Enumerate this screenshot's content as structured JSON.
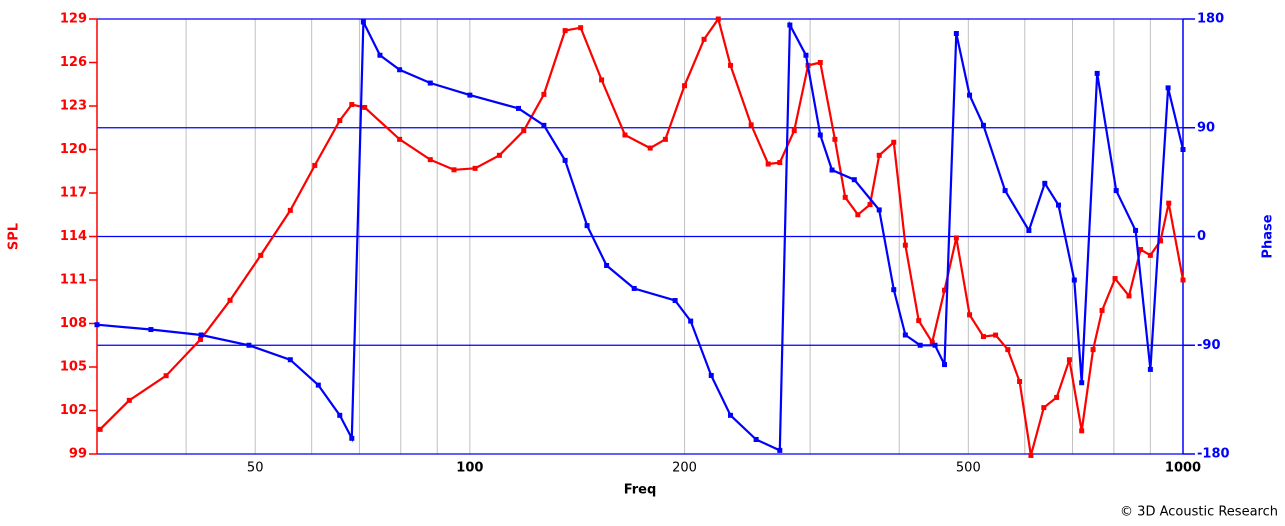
{
  "chart_data": {
    "type": "line",
    "xlabel": "Freq",
    "ylabel": "SPL",
    "y2label": "Phase",
    "annotation": "© 3D Acoustic Research",
    "log_x": true,
    "xlim": [
      30,
      1000
    ],
    "xticks": [
      50,
      100,
      200,
      500,
      1000
    ],
    "xgrid": [
      40,
      50,
      60,
      70,
      80,
      90,
      100,
      200,
      300,
      400,
      500,
      600,
      700,
      800,
      900
    ],
    "ylim": [
      99,
      129
    ],
    "yticks": [
      99,
      102,
      105,
      108,
      111,
      114,
      117,
      120,
      123,
      126,
      129
    ],
    "y2lim": [
      -180,
      180
    ],
    "y2ticks": [
      -180,
      -90,
      0,
      90,
      180
    ],
    "series": [
      {
        "name": "SPL",
        "color": "#ff0000",
        "x": [
          30.3,
          33.3,
          37.5,
          41.9,
          46.1,
          50.9,
          56,
          60.6,
          65.7,
          68.3,
          71.2,
          79.7,
          88,
          95,
          101.7,
          110,
          119,
          127,
          136,
          143,
          153,
          165,
          179,
          188,
          200,
          213,
          223,
          232,
          248,
          262,
          272,
          285,
          298,
          310,
          325,
          336,
          350,
          364,
          375,
          393,
          408,
          426,
          445,
          463,
          481,
          502,
          525,
          546,
          568,
          590,
          612,
          638,
          665,
          693,
          721,
          748,
          770,
          803,
          840,
          872,
          900,
          930,
          955,
          1000
        ],
        "values": [
          100.7,
          102.7,
          104.4,
          106.9,
          109.6,
          112.7,
          115.8,
          118.9,
          122,
          123.1,
          122.9,
          120.7,
          119.3,
          118.6,
          118.7,
          119.6,
          121.3,
          123.8,
          128.2,
          128.4,
          124.8,
          121,
          120.1,
          120.7,
          124.4,
          127.6,
          129,
          125.8,
          121.7,
          119,
          119.1,
          121.3,
          125.8,
          126,
          120.7,
          116.7,
          115.5,
          116.2,
          119.6,
          120.5,
          113.4,
          108.2,
          106.7,
          110.3,
          113.9,
          108.6,
          107.1,
          107.2,
          106.2,
          104,
          98.9,
          102.2,
          102.9,
          105.5,
          100.6,
          106.2,
          108.9,
          111.1,
          109.9,
          113.1,
          112.7,
          113.7,
          116.3,
          111
        ]
      },
      {
        "name": "Phase",
        "color": "#0000ff",
        "axis": "y2",
        "x": [
          30,
          35.7,
          42,
          49,
          56,
          61.3,
          65.7,
          68.3,
          70.9,
          74.8,
          79.7,
          88,
          100,
          117,
          127,
          136,
          146,
          155.5,
          170,
          194,
          204,
          218,
          232,
          252,
          272,
          281,
          296,
          310,
          322,
          346,
          375,
          393,
          408,
          428,
          449,
          463,
          481,
          502,
          525,
          563,
          608,
          640,
          669,
          704,
          721,
          758,
          806,
          858,
          900,
          953,
          1000
        ],
        "values": [
          -73,
          -77,
          -81.5,
          -90,
          -102,
          -123,
          -148,
          -167,
          177.5,
          150,
          138,
          127,
          117,
          106,
          92,
          63,
          9,
          -24,
          -43,
          -53,
          -70,
          -115,
          -148,
          -168,
          -177,
          175,
          150,
          84,
          55,
          47,
          22,
          -44,
          -81.5,
          -90,
          -90,
          -106,
          168,
          117,
          92,
          38,
          5,
          44,
          26,
          -36,
          -121,
          135,
          38,
          5,
          -110,
          123,
          72
        ]
      }
    ]
  }
}
